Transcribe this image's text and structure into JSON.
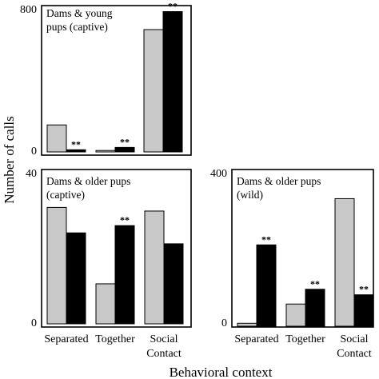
{
  "colors": {
    "gray": "#c8c8c8",
    "black": "#000000",
    "stroke": "#000000"
  },
  "figure": {
    "ylabel": "Number of calls",
    "xlabel": "Behavioral context"
  },
  "chart_data": [
    {
      "type": "bar",
      "title_lines": [
        "Dams & young",
        "pups (captive)"
      ],
      "categories": [
        "Separated",
        "Together",
        "Social Contact"
      ],
      "ylim": [
        0,
        800
      ],
      "yticks": [
        "800",
        "0"
      ],
      "series": [
        {
          "values": [
            150,
            8,
            680
          ]
        },
        {
          "values": [
            12,
            25,
            780
          ]
        }
      ],
      "significance": [
        "**",
        "**",
        "**"
      ],
      "show_category_labels": false
    },
    {
      "type": "bar",
      "title_lines": [
        "Dams & older pups",
        "(captive)"
      ],
      "categories": [
        "Separated",
        "Together",
        "Social Contact"
      ],
      "category_lines": [
        [
          "Separated"
        ],
        [
          "Together"
        ],
        [
          "Social",
          "Contact"
        ]
      ],
      "ylim": [
        0,
        40
      ],
      "yticks": [
        "40",
        "0"
      ],
      "series": [
        {
          "values": [
            32,
            11,
            31
          ]
        },
        {
          "values": [
            25,
            27,
            22
          ]
        }
      ],
      "significance": [
        "",
        "**",
        ""
      ],
      "show_category_labels": true
    },
    {
      "type": "bar",
      "title_lines": [
        "Dams & older pups",
        "(wild)"
      ],
      "categories": [
        "Separated",
        "Together",
        "Social Contact"
      ],
      "category_lines": [
        [
          "Separated"
        ],
        [
          "Together"
        ],
        [
          "Social",
          "Contact"
        ]
      ],
      "ylim": [
        0,
        400
      ],
      "yticks": [
        "400",
        "0"
      ],
      "series": [
        {
          "values": [
            8,
            60,
            345
          ]
        },
        {
          "values": [
            220,
            100,
            85
          ]
        }
      ],
      "significance": [
        "**",
        "**",
        "**"
      ],
      "show_category_labels": true
    }
  ]
}
